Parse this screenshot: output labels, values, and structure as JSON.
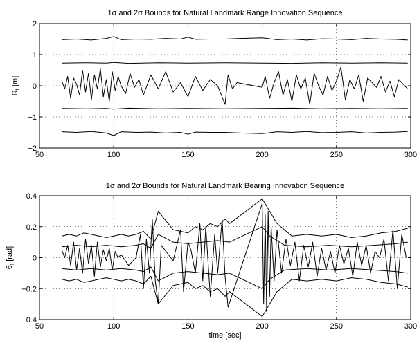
{
  "chart_data": [
    {
      "type": "line",
      "title": "1σ and 2σ Bounds for Natural Landmark Range Innovation Sequence",
      "xlabel": "",
      "ylabel_main": "R",
      "ylabel_sub": "f",
      "ylabel_unit": " [m]",
      "xlim": [
        50,
        300
      ],
      "ylim": [
        -2,
        2
      ],
      "xticks": [
        50,
        100,
        150,
        200,
        250,
        300
      ],
      "yticks": [
        -2,
        -1,
        0,
        1,
        2
      ],
      "xticklabels": [
        "50",
        "100",
        "150",
        "200",
        "250",
        "300"
      ],
      "yticklabels": [
        "−2",
        "−1",
        "0",
        "1",
        "2"
      ],
      "grid": true,
      "series": [
        {
          "role": "upper-2sigma",
          "x": [
            65,
            75,
            85,
            95,
            100,
            105,
            115,
            125,
            135,
            145,
            150,
            155,
            165,
            175,
            185,
            200,
            210,
            220,
            230,
            240,
            250,
            260,
            270,
            280,
            290,
            298
          ],
          "y": [
            1.48,
            1.5,
            1.47,
            1.52,
            1.58,
            1.48,
            1.5,
            1.49,
            1.52,
            1.5,
            1.56,
            1.49,
            1.5,
            1.5,
            1.52,
            1.54,
            1.48,
            1.5,
            1.47,
            1.51,
            1.5,
            1.48,
            1.52,
            1.5,
            1.49,
            1.47
          ]
        },
        {
          "role": "upper-1sigma",
          "x": [
            65,
            80,
            95,
            100,
            110,
            130,
            150,
            175,
            200,
            220,
            240,
            260,
            280,
            298
          ],
          "y": [
            0.73,
            0.74,
            0.73,
            0.75,
            0.72,
            0.74,
            0.73,
            0.74,
            0.73,
            0.72,
            0.74,
            0.73,
            0.74,
            0.73
          ]
        },
        {
          "role": "innovation",
          "x": [
            65,
            67,
            69,
            71,
            73,
            75,
            77,
            79,
            81,
            83,
            85,
            87,
            89,
            91,
            93,
            95,
            97,
            99,
            101,
            103,
            105,
            108,
            111,
            114,
            117,
            120,
            125,
            130,
            135,
            140,
            145,
            150,
            155,
            160,
            165,
            170,
            175,
            177,
            180,
            183,
            200,
            202,
            205,
            208,
            211,
            214,
            217,
            220,
            223,
            226,
            229,
            232,
            235,
            238,
            241,
            244,
            247,
            250,
            253,
            256,
            259,
            262,
            265,
            268,
            271,
            274,
            277,
            280,
            283,
            286,
            289,
            292,
            295,
            298
          ],
          "y": [
            0.15,
            -0.1,
            0.3,
            -0.4,
            0.25,
            0.05,
            -0.3,
            0.5,
            -0.2,
            0.4,
            -0.45,
            0.35,
            -0.1,
            0.55,
            -0.35,
            0.2,
            -0.5,
            0.45,
            -0.15,
            0.3,
            0.0,
            -0.25,
            0.4,
            -0.05,
            0.2,
            -0.3,
            0.35,
            -0.1,
            0.45,
            -0.2,
            0.1,
            -0.35,
            0.3,
            -0.15,
            0.2,
            0.0,
            -0.6,
            0.35,
            -0.1,
            0.1,
            -0.05,
            0.3,
            -0.4,
            0.1,
            0.45,
            -0.3,
            0.2,
            -0.5,
            0.35,
            -0.1,
            0.25,
            -0.6,
            0.4,
            0.0,
            -0.3,
            0.3,
            -0.15,
            0.15,
            0.6,
            -0.45,
            0.2,
            -0.1,
            0.35,
            -0.5,
            0.25,
            0.1,
            -0.05,
            0.3,
            -0.2,
            0.15,
            -0.35,
            0.2,
            0.05,
            -0.1
          ]
        },
        {
          "role": "lower-1sigma",
          "x": [
            65,
            80,
            95,
            100,
            110,
            130,
            150,
            175,
            200,
            220,
            240,
            260,
            280,
            298
          ],
          "y": [
            -0.73,
            -0.74,
            -0.73,
            -0.75,
            -0.72,
            -0.74,
            -0.73,
            -0.74,
            -0.73,
            -0.72,
            -0.74,
            -0.73,
            -0.74,
            -0.73
          ]
        },
        {
          "role": "lower-2sigma",
          "x": [
            65,
            75,
            85,
            95,
            100,
            105,
            115,
            125,
            135,
            145,
            150,
            155,
            165,
            175,
            185,
            200,
            210,
            220,
            230,
            240,
            250,
            260,
            270,
            280,
            290,
            298
          ],
          "y": [
            -1.48,
            -1.5,
            -1.47,
            -1.52,
            -1.6,
            -1.48,
            -1.5,
            -1.49,
            -1.52,
            -1.5,
            -1.56,
            -1.49,
            -1.5,
            -1.5,
            -1.52,
            -1.54,
            -1.48,
            -1.5,
            -1.47,
            -1.51,
            -1.5,
            -1.48,
            -1.52,
            -1.5,
            -1.49,
            -1.47
          ]
        }
      ]
    },
    {
      "type": "line",
      "title": "1σ and 2σ Bounds for Natural Landmark Bearing Innovation Sequence",
      "xlabel": "time [sec]",
      "ylabel_main": "θ",
      "ylabel_sub": "f",
      "ylabel_unit": " [rad]",
      "xlim": [
        50,
        300
      ],
      "ylim": [
        -0.4,
        0.4
      ],
      "xticks": [
        50,
        100,
        150,
        200,
        250,
        300
      ],
      "yticks": [
        -0.4,
        -0.2,
        0,
        0.2,
        0.4
      ],
      "xticklabels": [
        "50",
        "100",
        "150",
        "200",
        "250",
        "300"
      ],
      "yticklabels": [
        "−0.4",
        "−0.2",
        "0",
        "0.2",
        "0.4"
      ],
      "grid": true,
      "series": [
        {
          "role": "upper-2sigma",
          "x": [
            65,
            70,
            75,
            80,
            85,
            90,
            95,
            100,
            105,
            110,
            115,
            120,
            125,
            130,
            140,
            150,
            155,
            160,
            165,
            170,
            175,
            178,
            200,
            205,
            210,
            220,
            230,
            240,
            250,
            260,
            270,
            280,
            290,
            298
          ],
          "y": [
            0.14,
            0.15,
            0.14,
            0.16,
            0.15,
            0.14,
            0.13,
            0.14,
            0.15,
            0.14,
            0.15,
            0.17,
            0.12,
            0.3,
            0.18,
            0.16,
            0.2,
            0.18,
            0.22,
            0.2,
            0.25,
            0.22,
            0.38,
            0.3,
            0.22,
            0.14,
            0.15,
            0.14,
            0.15,
            0.13,
            0.14,
            0.16,
            0.17,
            0.19
          ]
        },
        {
          "role": "upper-1sigma",
          "x": [
            65,
            75,
            85,
            95,
            105,
            115,
            120,
            125,
            130,
            140,
            150,
            160,
            170,
            178,
            200,
            205,
            215,
            230,
            245,
            260,
            275,
            290,
            298
          ],
          "y": [
            0.07,
            0.08,
            0.07,
            0.08,
            0.07,
            0.08,
            0.09,
            0.06,
            0.15,
            0.1,
            0.09,
            0.1,
            0.11,
            0.1,
            0.2,
            0.14,
            0.08,
            0.07,
            0.08,
            0.07,
            0.08,
            0.09,
            0.1
          ]
        },
        {
          "role": "innovation",
          "x": [
            65,
            67,
            69,
            71,
            73,
            75,
            77,
            79,
            81,
            83,
            85,
            87,
            89,
            91,
            93,
            95,
            97,
            99,
            101,
            103,
            105,
            110,
            115,
            118,
            120,
            122,
            124,
            126,
            128,
            130,
            132,
            140,
            145,
            147,
            150,
            152,
            155,
            158,
            160,
            162,
            165,
            168,
            170,
            173,
            175,
            177,
            200,
            201,
            202,
            203,
            204,
            205,
            206,
            208,
            210,
            213,
            216,
            219,
            222,
            225,
            228,
            231,
            234,
            237,
            240,
            243,
            246,
            249,
            252,
            255,
            258,
            261,
            264,
            267,
            270,
            273,
            276,
            279,
            282,
            285,
            288,
            291,
            294,
            297
          ],
          "y": [
            0.05,
            0.0,
            0.08,
            -0.05,
            0.1,
            -0.08,
            0.06,
            -0.1,
            0.12,
            -0.04,
            0.08,
            -0.12,
            0.1,
            -0.06,
            0.05,
            -0.02,
            0.06,
            -0.08,
            0.04,
            0.0,
            0.02,
            -0.05,
            0.0,
            0.15,
            -0.2,
            0.12,
            -0.1,
            0.25,
            -0.15,
            -0.3,
            0.08,
            -0.02,
            0.18,
            -0.22,
            0.1,
            0.05,
            -0.1,
            0.22,
            -0.15,
            0.2,
            -0.25,
            0.15,
            -0.1,
            0.25,
            -0.12,
            -0.32,
            0.35,
            -0.3,
            0.28,
            -0.35,
            0.3,
            -0.25,
            0.2,
            -0.15,
            0.18,
            -0.1,
            0.12,
            -0.05,
            0.1,
            -0.15,
            0.08,
            -0.06,
            0.1,
            -0.12,
            0.06,
            -0.08,
            0.04,
            -0.1,
            0.08,
            -0.04,
            0.06,
            -0.12,
            0.1,
            -0.05,
            0.08,
            -0.1,
            0.04,
            0.0,
            0.12,
            -0.15,
            0.18,
            -0.2,
            0.15,
            0.0
          ]
        },
        {
          "role": "lower-1sigma",
          "x": [
            65,
            75,
            85,
            95,
            105,
            115,
            120,
            125,
            130,
            140,
            150,
            160,
            170,
            178,
            200,
            205,
            215,
            230,
            245,
            260,
            275,
            290,
            298
          ],
          "y": [
            -0.07,
            -0.08,
            -0.07,
            -0.08,
            -0.07,
            -0.08,
            -0.09,
            -0.06,
            -0.15,
            -0.1,
            -0.09,
            -0.1,
            -0.11,
            -0.1,
            -0.2,
            -0.14,
            -0.08,
            -0.07,
            -0.08,
            -0.07,
            -0.08,
            -0.09,
            -0.1
          ]
        },
        {
          "role": "lower-2sigma",
          "x": [
            65,
            70,
            75,
            80,
            85,
            90,
            95,
            100,
            105,
            110,
            115,
            120,
            125,
            130,
            140,
            150,
            155,
            160,
            165,
            170,
            175,
            178,
            200,
            205,
            210,
            220,
            230,
            240,
            250,
            260,
            270,
            280,
            290,
            298
          ],
          "y": [
            -0.14,
            -0.15,
            -0.14,
            -0.16,
            -0.15,
            -0.14,
            -0.13,
            -0.14,
            -0.15,
            -0.14,
            -0.15,
            -0.17,
            -0.12,
            -0.3,
            -0.18,
            -0.16,
            -0.2,
            -0.18,
            -0.22,
            -0.2,
            -0.25,
            -0.22,
            -0.38,
            -0.3,
            -0.22,
            -0.14,
            -0.15,
            -0.14,
            -0.15,
            -0.13,
            -0.14,
            -0.16,
            -0.17,
            -0.19
          ]
        }
      ]
    }
  ]
}
